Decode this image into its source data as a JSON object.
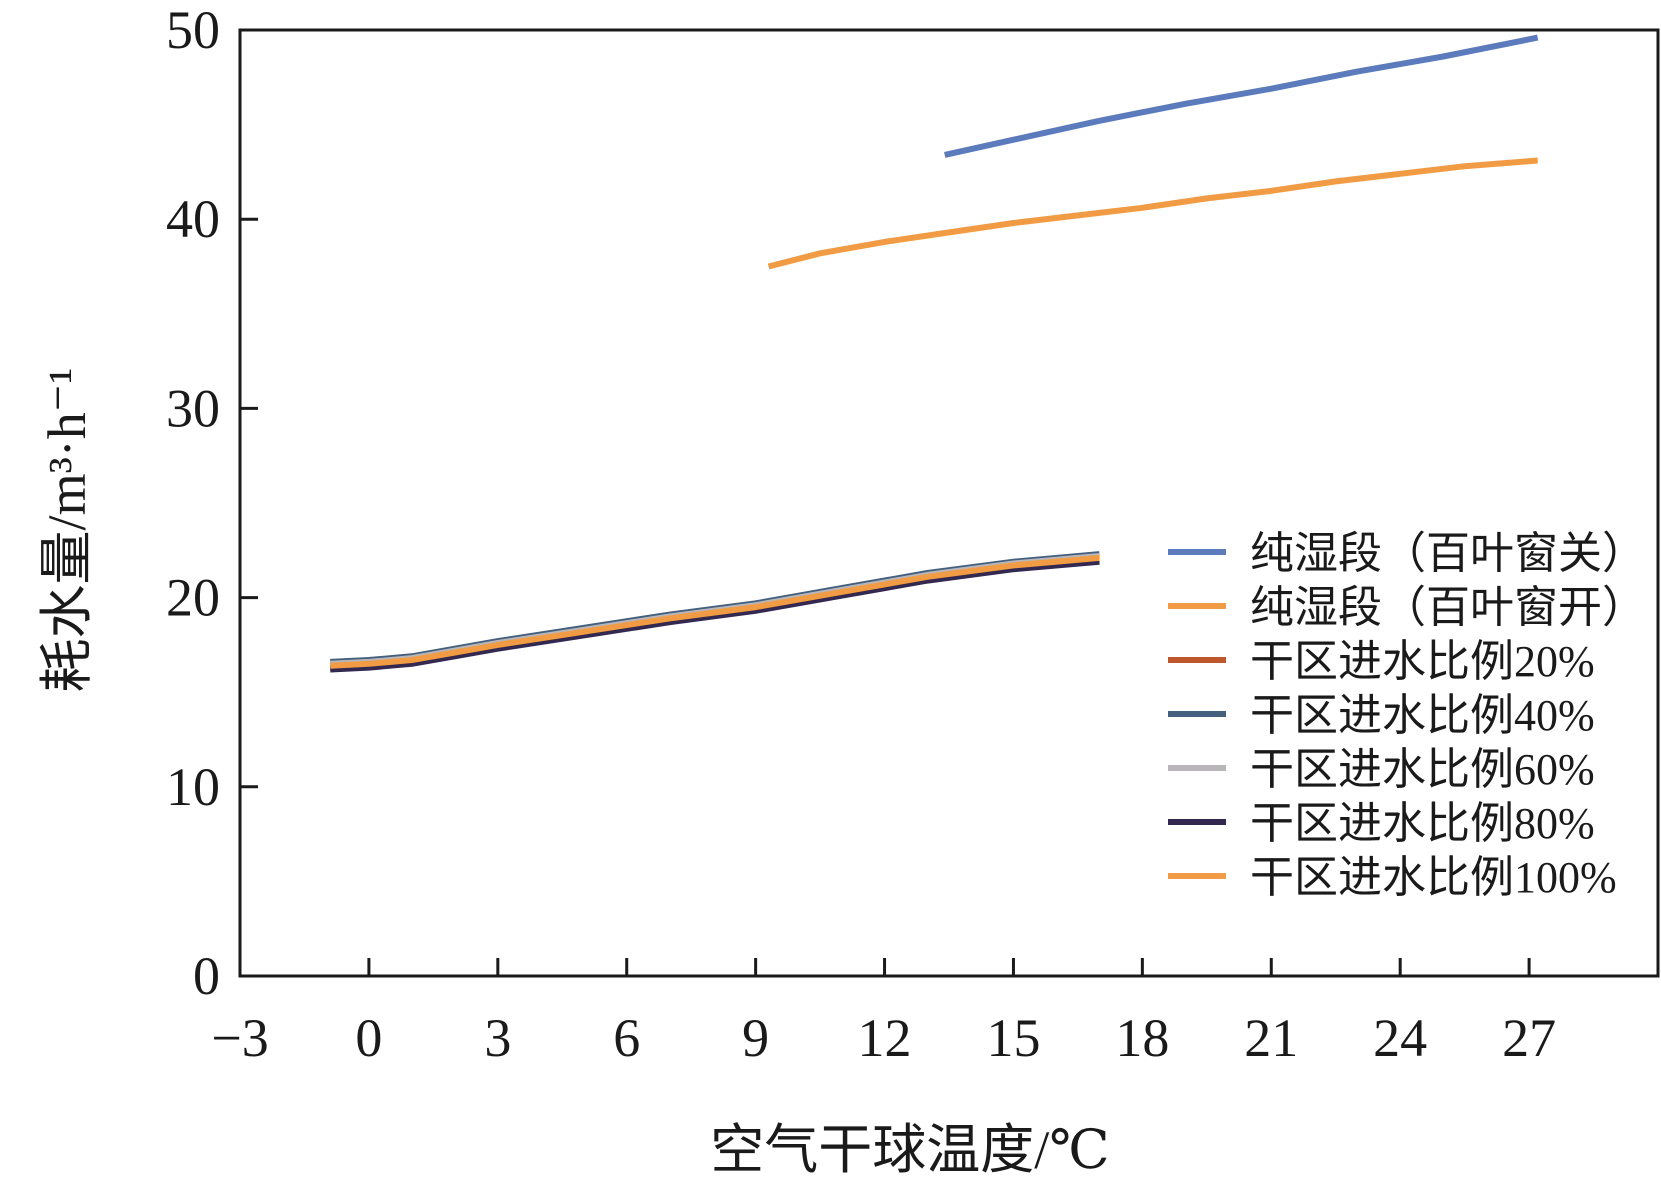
{
  "chart_data": {
    "type": "line",
    "title": "",
    "xlabel": "空气干球温度/℃",
    "ylabel": "耗水量/m³·h⁻¹",
    "xlim": [
      -3,
      30
    ],
    "ylim": [
      0,
      50
    ],
    "xticks": [
      -3,
      0,
      3,
      6,
      9,
      12,
      15,
      18,
      21,
      24,
      27
    ],
    "xtick_labels": [
      "−3",
      "0",
      "3",
      "6",
      "9",
      "12",
      "15",
      "18",
      "21",
      "24",
      "27"
    ],
    "yticks": [
      0,
      10,
      20,
      30,
      40,
      50
    ],
    "ytick_labels": [
      "0",
      "10",
      "20",
      "30",
      "40",
      "50"
    ],
    "grid": false,
    "legend_position": "right",
    "series": [
      {
        "name": "纯湿段（百叶窗关）",
        "color": "#5b7bbd",
        "x": [
          13.4,
          15,
          17,
          19,
          21,
          23,
          25,
          27.2
        ],
        "y": [
          43.4,
          44.2,
          45.2,
          46.1,
          46.9,
          47.8,
          48.6,
          49.6
        ]
      },
      {
        "name": "纯湿段（百叶窗开）",
        "color": "#f19c45",
        "x": [
          9.3,
          10.5,
          12,
          13.5,
          15,
          16.5,
          18,
          19.5,
          21,
          22.5,
          24,
          25.5,
          27.2
        ],
        "y": [
          37.5,
          38.2,
          38.8,
          39.3,
          39.8,
          40.2,
          40.6,
          41.1,
          41.5,
          42.0,
          42.4,
          42.8,
          43.1
        ]
      },
      {
        "name": "干区进水比例20%",
        "color": "#c0562b",
        "x": [
          -0.9,
          0,
          1,
          2,
          3,
          5,
          7,
          9,
          11,
          13,
          15,
          17
        ],
        "y": [
          16.3,
          16.4,
          16.6,
          17.0,
          17.4,
          18.1,
          18.8,
          19.4,
          20.2,
          21.0,
          21.6,
          22.0
        ]
      },
      {
        "name": "干区进水比例40%",
        "color": "#44607e",
        "x": [
          -0.9,
          0,
          1,
          2,
          3,
          5,
          7,
          9,
          11,
          13,
          15,
          17
        ],
        "y": [
          16.6,
          16.7,
          16.9,
          17.3,
          17.7,
          18.4,
          19.1,
          19.7,
          20.5,
          21.3,
          21.9,
          22.3
        ]
      },
      {
        "name": "干区进水比例60%",
        "color": "#b9b6b9",
        "x": [
          -0.9,
          0,
          1,
          2,
          3,
          5,
          7,
          9,
          11,
          13,
          15,
          17
        ],
        "y": [
          16.5,
          16.6,
          16.8,
          17.2,
          17.6,
          18.3,
          19.0,
          19.6,
          20.4,
          21.2,
          21.8,
          22.2
        ]
      },
      {
        "name": "干区进水比例80%",
        "color": "#332950",
        "x": [
          -0.9,
          0,
          1,
          2,
          3,
          5,
          7,
          9,
          11,
          13,
          15,
          17
        ],
        "y": [
          16.2,
          16.3,
          16.5,
          16.9,
          17.3,
          18.0,
          18.7,
          19.3,
          20.1,
          20.9,
          21.5,
          21.9
        ]
      },
      {
        "name": "干区进水比例100%",
        "color": "#f19c45",
        "x": [
          -0.9,
          0,
          1,
          2,
          3,
          5,
          7,
          9,
          11,
          13,
          15,
          17
        ],
        "y": [
          16.4,
          16.5,
          16.7,
          17.1,
          17.5,
          18.2,
          18.9,
          19.5,
          20.3,
          21.1,
          21.7,
          22.1
        ]
      }
    ]
  }
}
